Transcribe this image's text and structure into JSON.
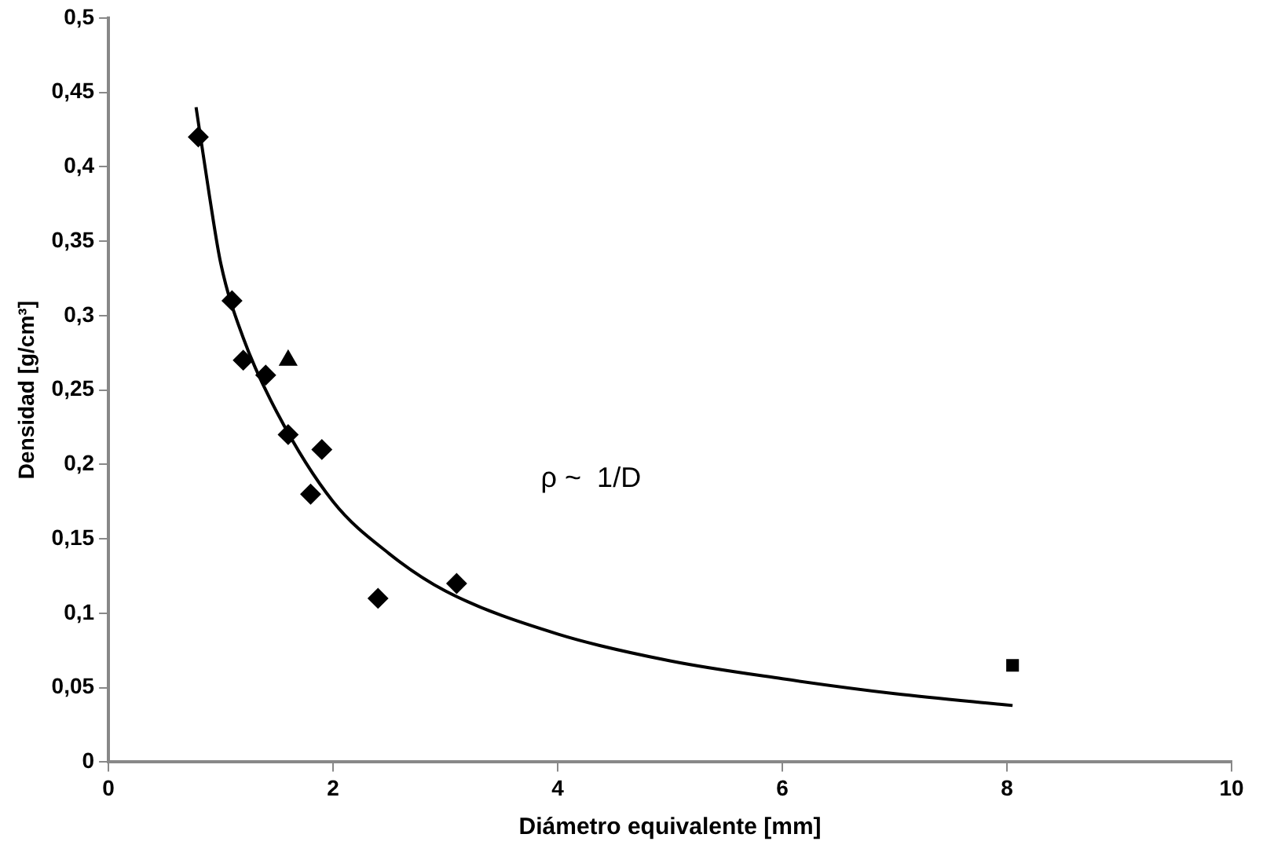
{
  "chart_data": {
    "type": "scatter",
    "xlabel": "Diámetro equivalente [mm]",
    "ylabel": "Densidad [g/cm³]",
    "xlim": [
      0,
      10
    ],
    "xticks": [
      0,
      2,
      4,
      6,
      8,
      10
    ],
    "ylim": [
      0,
      0.5
    ],
    "yticks": [
      {
        "value": 0,
        "label": "0"
      },
      {
        "value": 0.05,
        "label": "0,05"
      },
      {
        "value": 0.1,
        "label": "0,1"
      },
      {
        "value": 0.15,
        "label": "0,15"
      },
      {
        "value": 0.2,
        "label": "0,2"
      },
      {
        "value": 0.25,
        "label": "0,25"
      },
      {
        "value": 0.3,
        "label": "0,3"
      },
      {
        "value": 0.35,
        "label": "0,35"
      },
      {
        "value": 0.4,
        "label": "0,4"
      },
      {
        "value": 0.45,
        "label": "0,45"
      },
      {
        "value": 0.5,
        "label": "0,5"
      }
    ],
    "grid": false,
    "series": [
      {
        "type": "scatter",
        "marker": "diamond",
        "color": "#000000",
        "x": [
          0.8,
          1.1,
          1.2,
          1.4,
          1.6,
          1.9,
          1.8,
          2.4,
          3.1
        ],
        "values": [
          0.42,
          0.31,
          0.27,
          0.26,
          0.22,
          0.21,
          0.18,
          0.11,
          0.12
        ]
      },
      {
        "type": "scatter",
        "marker": "square",
        "color": "#000000",
        "x": [
          8.05
        ],
        "values": [
          0.065
        ]
      },
      {
        "type": "scatter",
        "marker": "triangle",
        "color": "#000000",
        "x": [
          1.6
        ],
        "values": [
          0.27
        ]
      },
      {
        "type": "line",
        "marker": "none",
        "color": "#000000",
        "x": [
          0.78,
          0.9,
          1,
          1.2,
          1.5,
          2,
          2.5,
          3,
          4,
          5,
          6,
          7,
          8.05
        ],
        "values": [
          0.44,
          0.38,
          0.335,
          0.285,
          0.235,
          0.175,
          0.14,
          0.115,
          0.086,
          0.068,
          0.056,
          0.046,
          0.038
        ]
      }
    ],
    "annotations": [
      "ρ ~  1/D"
    ]
  }
}
